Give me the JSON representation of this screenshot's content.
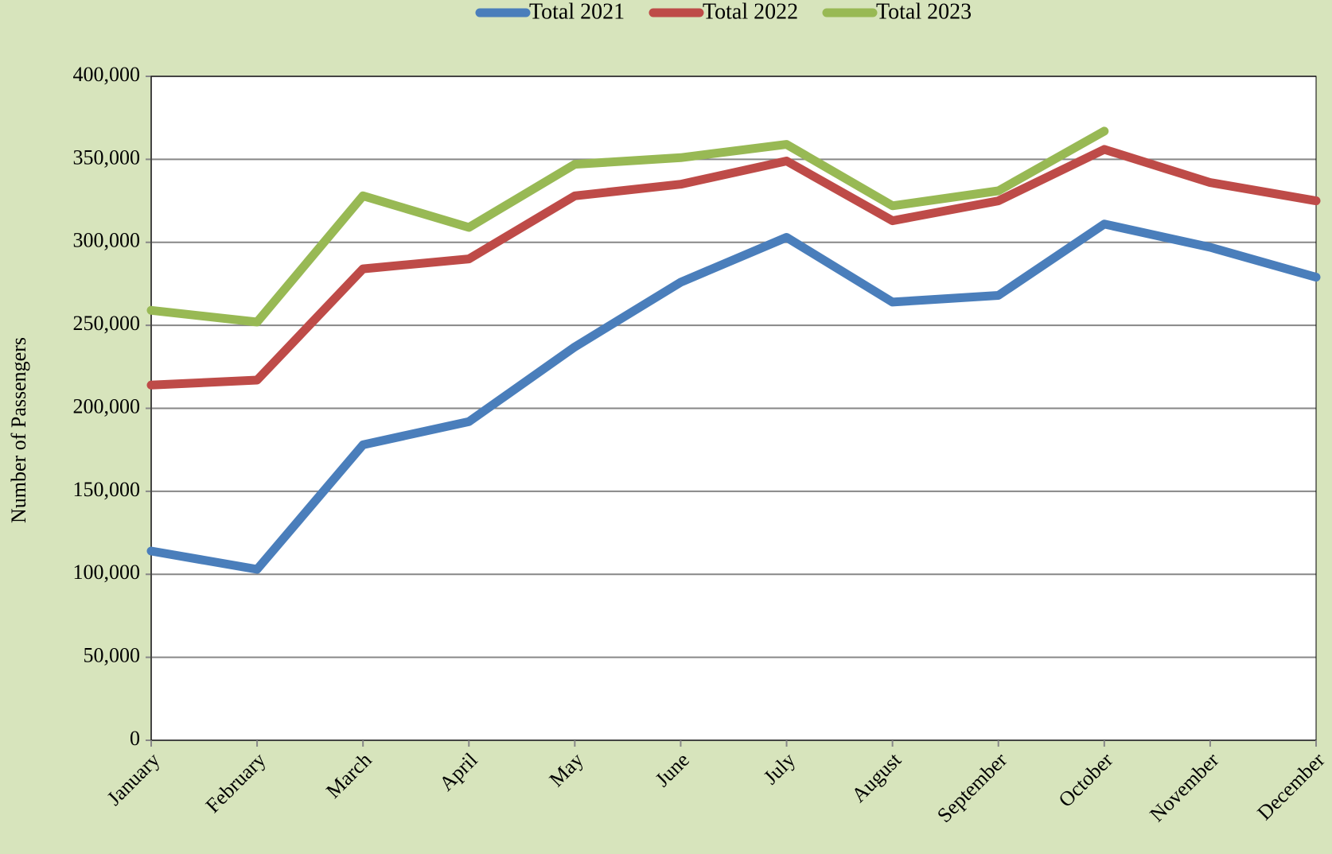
{
  "chart_data": {
    "type": "line",
    "y_axis_label": "Number of Passengers",
    "categories": [
      "January",
      "February",
      "March",
      "April",
      "May",
      "June",
      "July",
      "August",
      "September",
      "October",
      "November",
      "December"
    ],
    "series": [
      {
        "name": "Total 2021",
        "color": "#4a7ebb",
        "values": [
          114000,
          103000,
          178000,
          192000,
          237000,
          276000,
          303000,
          264000,
          268000,
          311000,
          297000,
          279000
        ]
      },
      {
        "name": "Total 2022",
        "color": "#be4b48",
        "values": [
          214000,
          217000,
          284000,
          290000,
          328000,
          335000,
          349000,
          313000,
          325000,
          356000,
          336000,
          325000
        ]
      },
      {
        "name": "Total 2023",
        "color": "#98b954",
        "values": [
          259000,
          252000,
          328000,
          309000,
          347000,
          351000,
          359000,
          322000,
          331000,
          367000,
          null,
          null
        ]
      }
    ],
    "ylim": [
      0,
      400000
    ],
    "yticks": [
      0,
      {
        "value": 50000,
        "label": "50,000"
      },
      {
        "value": 100000,
        "label": "100,000"
      },
      {
        "value": 150000,
        "label": "150,000"
      },
      {
        "value": 200000,
        "label": "200,000"
      },
      {
        "value": 250000,
        "label": "250,000"
      },
      {
        "value": 300000,
        "label": "300,000"
      },
      {
        "value": 350000,
        "label": "350,000"
      },
      {
        "value": 400000,
        "label": "400,000"
      }
    ],
    "grid": true,
    "legend": "top"
  }
}
